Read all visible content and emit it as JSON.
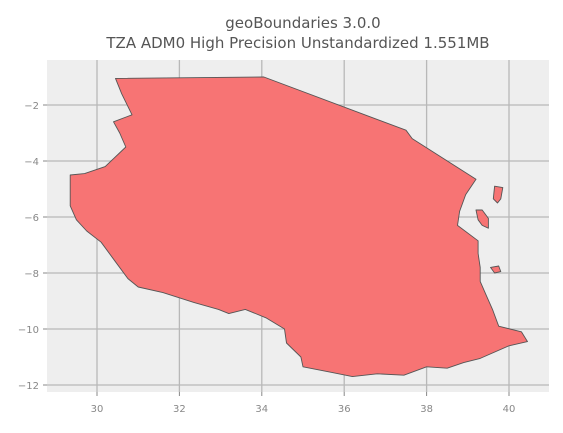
{
  "title_line1": "geoBoundaries 3.0.0",
  "title_line2": "TZA ADM0 High Precision Unstandardized 1.551MB",
  "colors": {
    "fill": "#f77474",
    "outline": "#555555",
    "plot_background": "#eeeeee",
    "grid": "#b8b8b8"
  },
  "chart_data": {
    "type": "map",
    "region": "TZA ADM0",
    "xlim": [
      28.8,
      41.0
    ],
    "ylim": [
      -12.3,
      -0.5
    ],
    "x_ticks": [
      30,
      32,
      34,
      36,
      38,
      40
    ],
    "y_ticks": [
      -2,
      -4,
      -6,
      -8,
      -10,
      -12
    ],
    "x_tick_labels": [
      "30",
      "32",
      "34",
      "36",
      "38",
      "40"
    ],
    "y_tick_labels": [
      "−2",
      "−4",
      "−6",
      "−8",
      "−10",
      "−12"
    ],
    "grid": true,
    "mainland": [
      [
        30.45,
        -1.05
      ],
      [
        34.05,
        -1.0
      ],
      [
        37.5,
        -2.9
      ],
      [
        37.65,
        -3.2
      ],
      [
        39.2,
        -4.65
      ],
      [
        38.95,
        -5.2
      ],
      [
        38.8,
        -5.8
      ],
      [
        38.75,
        -6.3
      ],
      [
        39.25,
        -6.85
      ],
      [
        39.25,
        -7.3
      ],
      [
        39.3,
        -7.8
      ],
      [
        39.3,
        -8.3
      ],
      [
        39.45,
        -8.8
      ],
      [
        39.6,
        -9.3
      ],
      [
        39.75,
        -9.9
      ],
      [
        40.3,
        -10.1
      ],
      [
        40.45,
        -10.45
      ],
      [
        40.0,
        -10.6
      ],
      [
        39.3,
        -11.05
      ],
      [
        38.9,
        -11.2
      ],
      [
        38.5,
        -11.4
      ],
      [
        38.0,
        -11.35
      ],
      [
        37.45,
        -11.65
      ],
      [
        36.8,
        -11.6
      ],
      [
        36.2,
        -11.7
      ],
      [
        35.7,
        -11.55
      ],
      [
        35.0,
        -11.35
      ],
      [
        34.95,
        -11.0
      ],
      [
        34.6,
        -10.5
      ],
      [
        34.55,
        -10.0
      ],
      [
        34.1,
        -9.6
      ],
      [
        33.6,
        -9.3
      ],
      [
        33.2,
        -9.45
      ],
      [
        32.95,
        -9.3
      ],
      [
        32.35,
        -9.05
      ],
      [
        31.6,
        -8.7
      ],
      [
        31.0,
        -8.5
      ],
      [
        30.75,
        -8.2
      ],
      [
        30.45,
        -7.6
      ],
      [
        30.1,
        -6.9
      ],
      [
        29.75,
        -6.5
      ],
      [
        29.5,
        -6.1
      ],
      [
        29.35,
        -5.6
      ],
      [
        29.35,
        -4.5
      ],
      [
        29.7,
        -4.45
      ],
      [
        30.2,
        -4.2
      ],
      [
        30.7,
        -3.5
      ],
      [
        30.55,
        -3.0
      ],
      [
        30.4,
        -2.6
      ],
      [
        30.85,
        -2.35
      ],
      [
        30.6,
        -1.6
      ],
      [
        30.45,
        -1.05
      ]
    ],
    "islands": [
      {
        "name": "",
        "points": [
          [
            39.65,
            -4.9
          ],
          [
            39.85,
            -4.95
          ],
          [
            39.8,
            -5.35
          ],
          [
            39.72,
            -5.5
          ],
          [
            39.62,
            -5.35
          ],
          [
            39.65,
            -4.9
          ]
        ]
      },
      {
        "name": "",
        "points": [
          [
            39.2,
            -5.75
          ],
          [
            39.35,
            -5.75
          ],
          [
            39.5,
            -6.05
          ],
          [
            39.5,
            -6.4
          ],
          [
            39.35,
            -6.3
          ],
          [
            39.25,
            -6.1
          ],
          [
            39.2,
            -5.75
          ]
        ]
      },
      {
        "name": "",
        "points": [
          [
            39.55,
            -7.8
          ],
          [
            39.75,
            -7.75
          ],
          [
            39.8,
            -7.95
          ],
          [
            39.65,
            -8.0
          ],
          [
            39.55,
            -7.8
          ]
        ]
      }
    ]
  }
}
